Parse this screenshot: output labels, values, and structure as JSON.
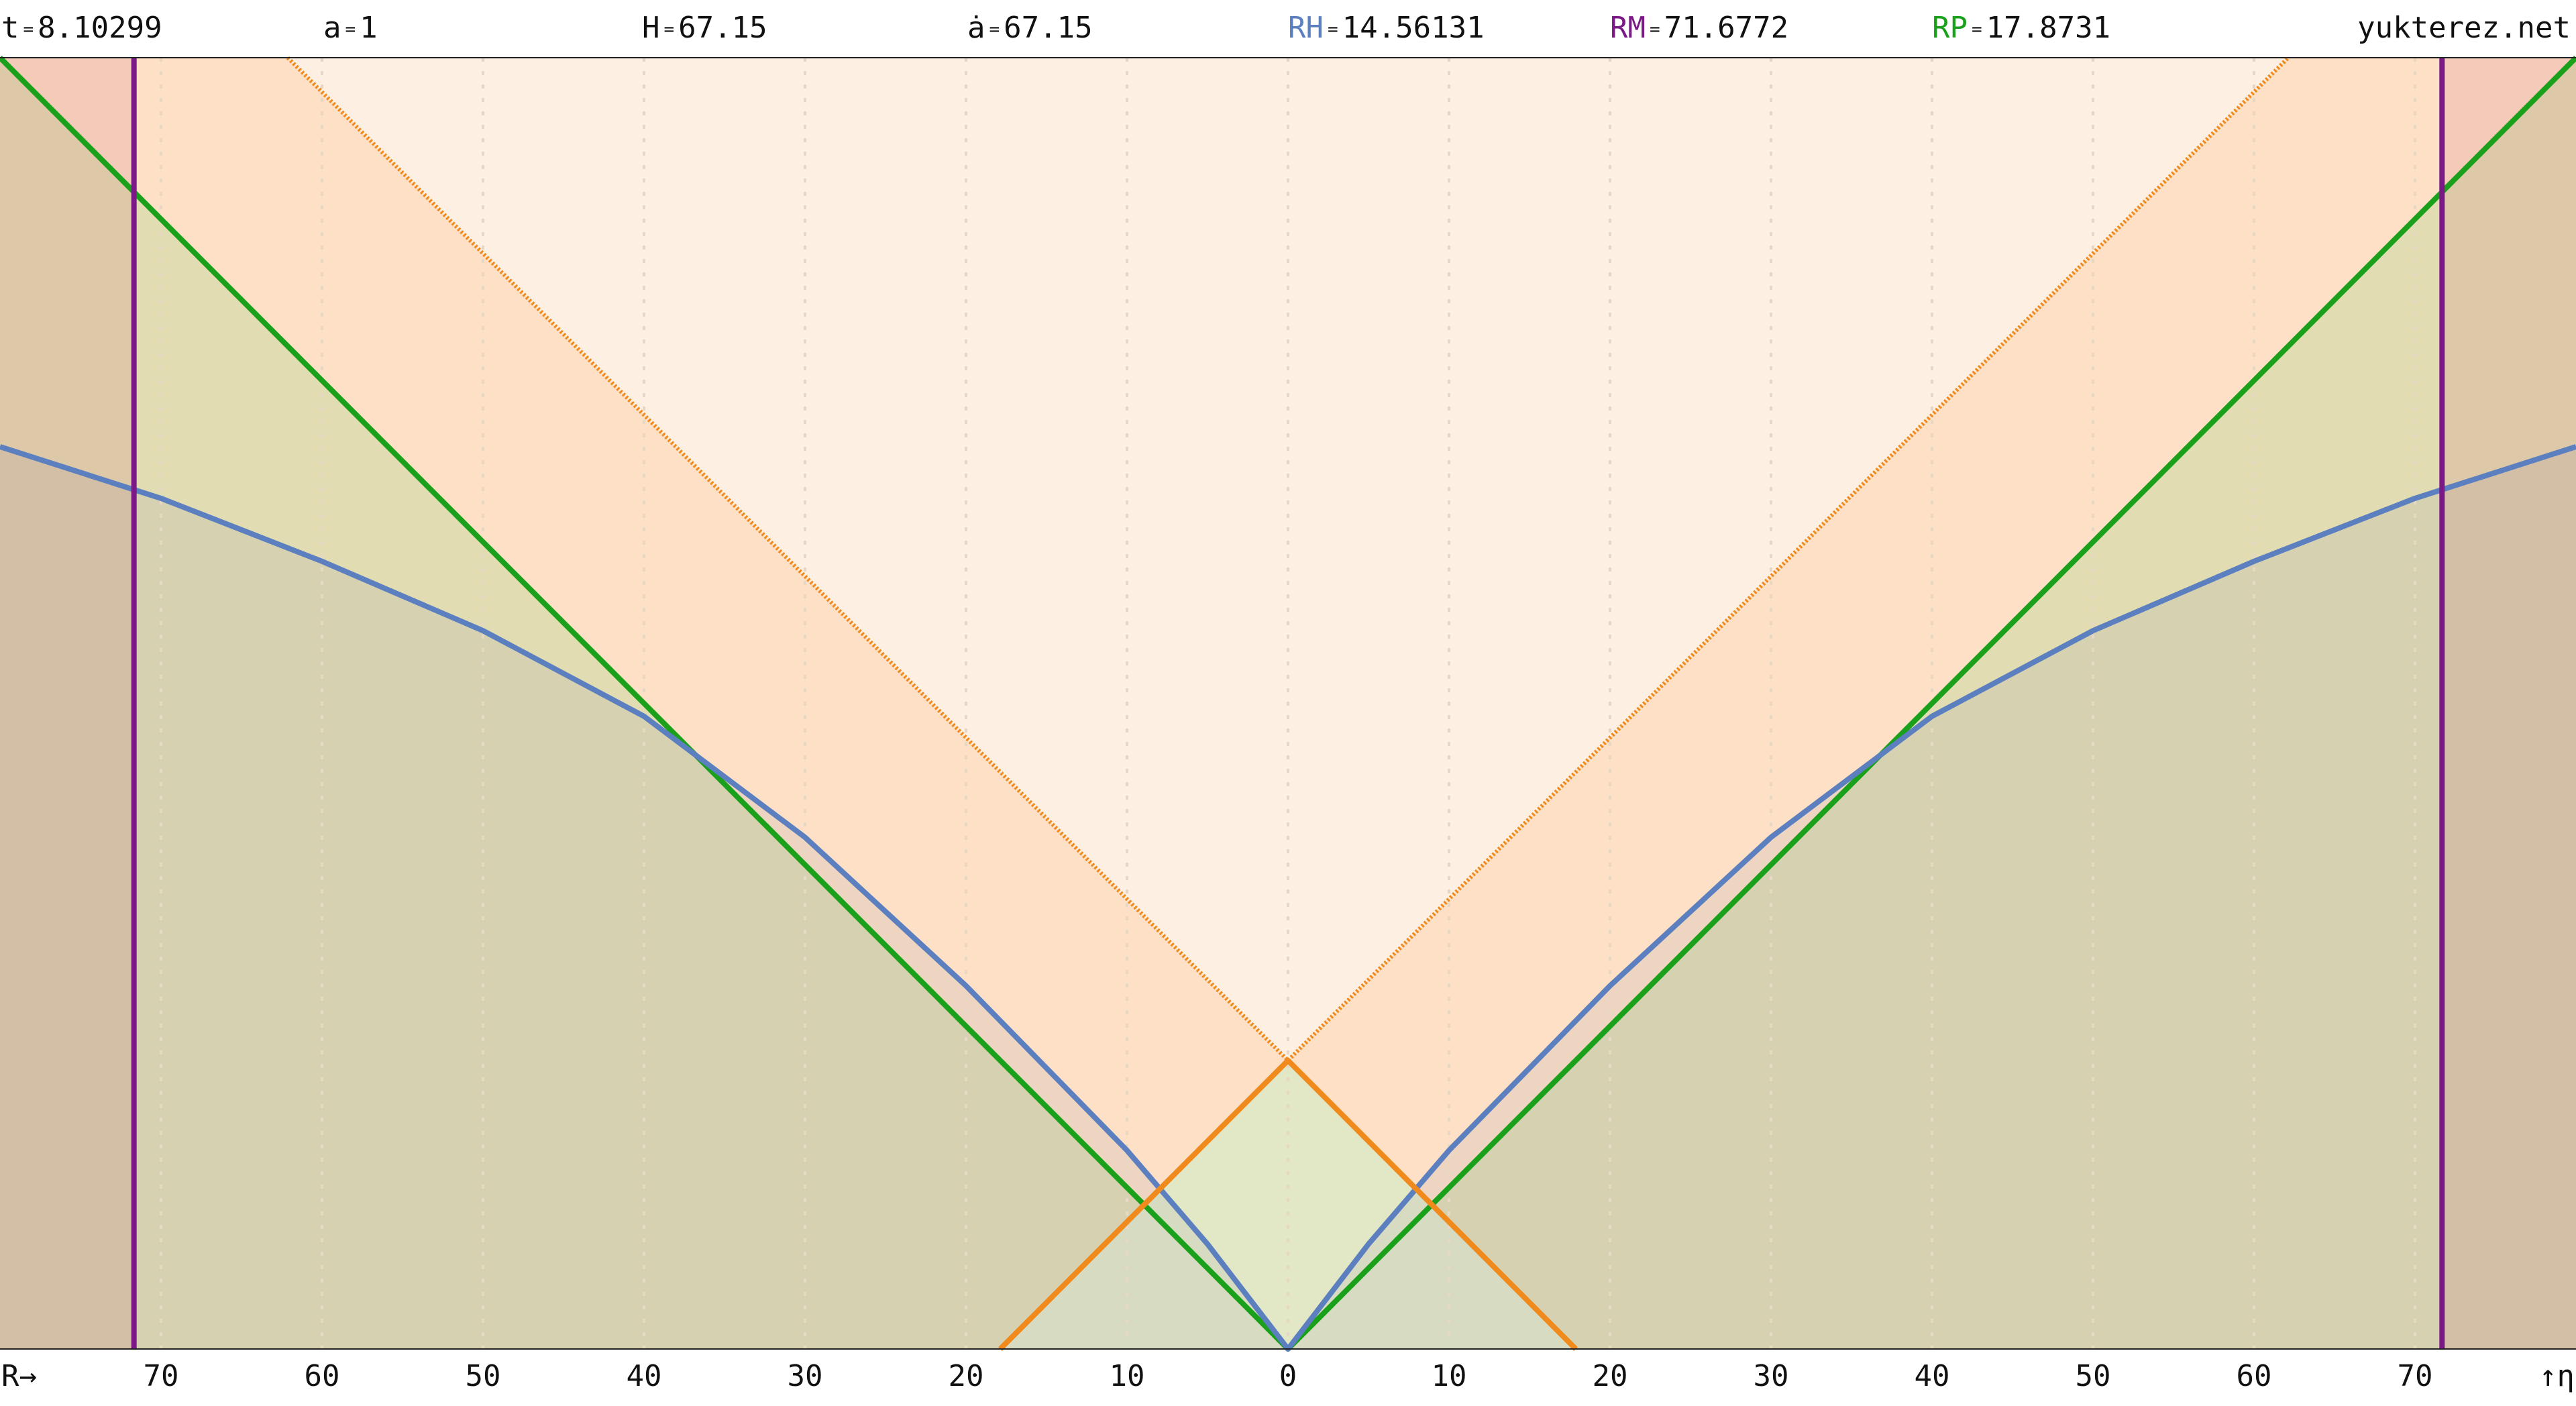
{
  "header": {
    "items": [
      {
        "label": "t",
        "sep": "=",
        "value": 8.10299
      },
      {
        "label": "a",
        "sep": "=",
        "value": 1
      },
      {
        "label": "H",
        "sep": "=",
        "value": 67.15
      },
      {
        "label": "ȧ",
        "sep": "=",
        "value": 67.15
      },
      {
        "label": "RH",
        "sep": "=",
        "value": 14.56131,
        "color": "#5b7fbf"
      },
      {
        "label": "RM",
        "sep": "=",
        "value": 71.6772,
        "color": "#7b1a86"
      },
      {
        "label": "RP",
        "sep": "=",
        "value": 17.8731,
        "color": "#1aa01a"
      }
    ],
    "watermark": "yukterez.net"
  },
  "chart_data": {
    "type": "line",
    "x_label": "R→",
    "y_label": "↑η",
    "xlim": [
      -80,
      80
    ],
    "ylim": [
      0,
      80
    ],
    "xticks": [
      {
        "value": -70,
        "label": "70"
      },
      {
        "value": -60,
        "label": "60"
      },
      {
        "value": -50,
        "label": "50"
      },
      {
        "value": -40,
        "label": "40"
      },
      {
        "value": -30,
        "label": "30"
      },
      {
        "value": -20,
        "label": "20"
      },
      {
        "value": -10,
        "label": "10"
      },
      0,
      10,
      20,
      30,
      40,
      50,
      60,
      70
    ],
    "grid": true,
    "series": [
      {
        "color": "#1aa01a",
        "x": [
          -80,
          0,
          80
        ],
        "values": [
          80,
          0,
          80
        ]
      },
      {
        "color": "#5b7fbf",
        "x": [
          -80,
          -70,
          -60,
          -50,
          -40,
          -30,
          -20,
          -10,
          -5,
          0,
          5,
          10,
          20,
          30,
          40,
          50,
          60,
          70,
          80
        ],
        "values": [
          55.9,
          52.7,
          48.8,
          44.5,
          39.2,
          31.7,
          22.5,
          12.3,
          6.5,
          0,
          6.5,
          12.3,
          22.5,
          31.7,
          39.2,
          44.5,
          48.8,
          52.7,
          55.9
        ]
      },
      {
        "color": "#f08a1c",
        "x": [
          -17.8731,
          0,
          17.8731
        ],
        "values": [
          0,
          17.8731,
          0
        ]
      },
      {
        "color": "#f08a1c",
        "dashed": true,
        "x": [
          -62.13,
          0,
          62.13
        ],
        "values": [
          80,
          17.8731,
          80
        ]
      },
      {
        "color": "#7b1a86",
        "x": [
          -71.6772,
          -71.6772
        ],
        "values": [
          0,
          80
        ]
      },
      {
        "color": "#7b1a86",
        "x": [
          71.6772,
          71.6772
        ],
        "values": [
          0,
          80
        ]
      }
    ]
  }
}
